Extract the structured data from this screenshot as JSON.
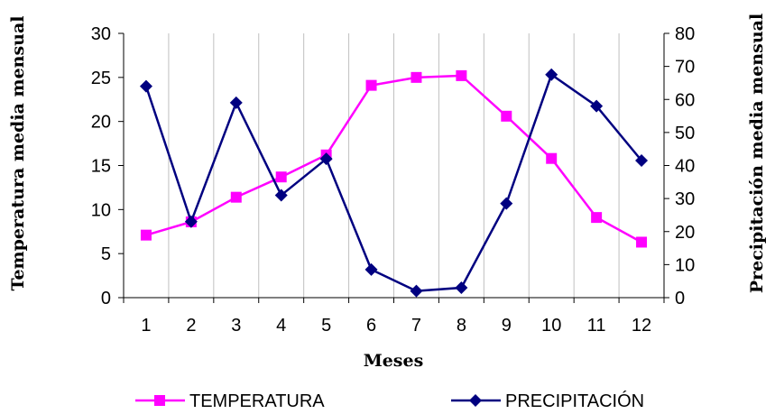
{
  "chart_data": {
    "type": "line",
    "categories": [
      "1",
      "2",
      "3",
      "4",
      "5",
      "6",
      "7",
      "8",
      "9",
      "10",
      "11",
      "12"
    ],
    "xlabel": "Meses",
    "ylabel_left": "Temperatura media mensual",
    "ylabel_right": "Precipitación media mensual",
    "ylim_left": [
      0,
      30
    ],
    "yticks_left": [
      "0",
      "5",
      "10",
      "15",
      "20",
      "25",
      "30"
    ],
    "ylim_right": [
      0,
      80
    ],
    "yticks_right": [
      "0",
      "10",
      "20",
      "30",
      "40",
      "50",
      "60",
      "70",
      "80"
    ],
    "grid": "vertical",
    "legend_position": "bottom",
    "series": [
      {
        "name": "TEMPERATURA",
        "axis": "left",
        "color": "#ff00ff",
        "marker": "square",
        "values": [
          7.1,
          8.6,
          11.4,
          13.7,
          16.2,
          24.1,
          25.0,
          25.2,
          20.6,
          15.8,
          9.1,
          6.3
        ]
      },
      {
        "name": "PRECIPITACIÓN",
        "axis": "right",
        "color": "#000080",
        "marker": "diamond",
        "values": [
          64,
          23,
          59,
          31,
          42,
          8.5,
          2,
          3,
          28.5,
          67.5,
          58,
          41.5
        ]
      }
    ]
  }
}
